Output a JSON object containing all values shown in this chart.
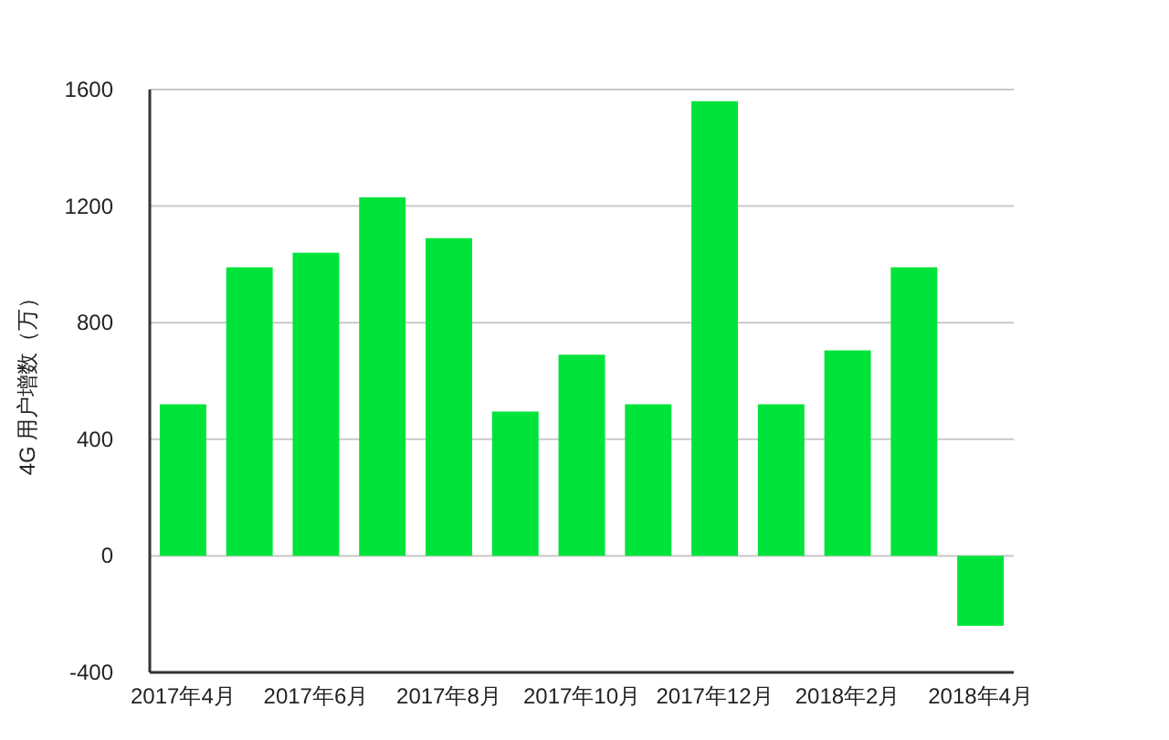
{
  "chart_data": {
    "type": "bar",
    "ylabel": "4G 用户增数（万）",
    "categories": [
      "2017年4月",
      null,
      "2017年6月",
      null,
      "2017年8月",
      null,
      "2017年10月",
      null,
      "2017年12月",
      null,
      "2018年2月",
      null,
      "2018年4月"
    ],
    "values": [
      520,
      990,
      1040,
      1230,
      1090,
      495,
      690,
      520,
      1560,
      520,
      705,
      990,
      -240
    ],
    "color": "#00e33a",
    "ylim": [
      -400,
      1600
    ],
    "yticks": [
      -400,
      0,
      400,
      800,
      1200,
      1600
    ],
    "grid": "y"
  }
}
